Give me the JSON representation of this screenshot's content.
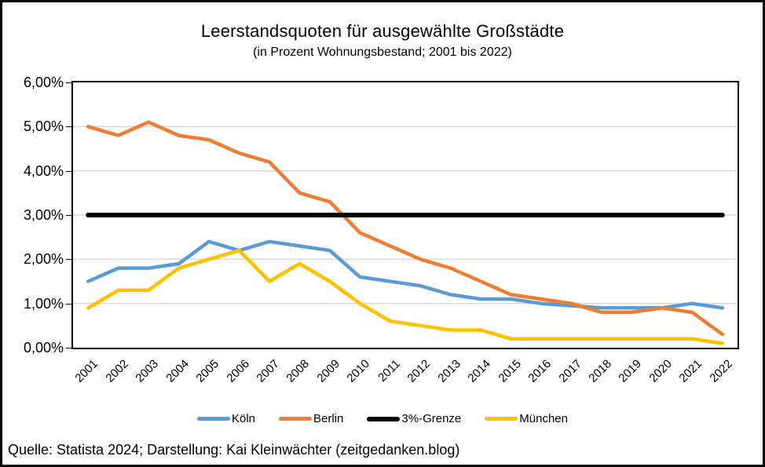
{
  "chart_data": {
    "type": "line",
    "title": "Leerstandsquoten für ausgewählte Großstädte",
    "subtitle": "(in Prozent Wohnungsbestand; 2001 bis 2022)",
    "categories": [
      "2001",
      "2002",
      "2003",
      "2004",
      "2005",
      "2006",
      "2007",
      "2008",
      "2009",
      "2010",
      "2011",
      "2012",
      "2013",
      "2014",
      "2015",
      "2016",
      "2017",
      "2018",
      "2019",
      "2020",
      "2021",
      "2022"
    ],
    "series": [
      {
        "name": "Köln",
        "color": "#5B9BD5",
        "stroke_width": 4.5,
        "values": [
          1.5,
          1.8,
          1.8,
          1.9,
          2.4,
          2.2,
          2.4,
          2.3,
          2.2,
          1.6,
          1.5,
          1.4,
          1.2,
          1.1,
          1.1,
          1.0,
          0.95,
          0.9,
          0.9,
          0.9,
          1.0,
          0.9
        ]
      },
      {
        "name": "Berlin",
        "color": "#ED7D31",
        "stroke_width": 4.5,
        "values": [
          5.0,
          4.8,
          5.1,
          4.8,
          4.7,
          4.4,
          4.2,
          3.5,
          3.3,
          2.6,
          2.3,
          2.0,
          1.8,
          1.5,
          1.2,
          1.1,
          1.0,
          0.8,
          0.8,
          0.9,
          0.8,
          0.3
        ]
      },
      {
        "name": "3%-Grenze",
        "color": "#000000",
        "stroke_width": 6,
        "values": [
          3.0,
          3.0,
          3.0,
          3.0,
          3.0,
          3.0,
          3.0,
          3.0,
          3.0,
          3.0,
          3.0,
          3.0,
          3.0,
          3.0,
          3.0,
          3.0,
          3.0,
          3.0,
          3.0,
          3.0,
          3.0,
          3.0
        ]
      },
      {
        "name": "München",
        "color": "#FFC000",
        "stroke_width": 4.5,
        "values": [
          0.9,
          1.3,
          1.3,
          1.8,
          2.0,
          2.2,
          1.5,
          1.9,
          1.5,
          1.0,
          0.6,
          0.5,
          0.4,
          0.4,
          0.2,
          0.2,
          0.2,
          0.2,
          0.2,
          0.2,
          0.2,
          0.1
        ]
      }
    ],
    "ylim": [
      0,
      6
    ],
    "ytick_step": 1,
    "ytick_labels": [
      "0,00%",
      "1,00%",
      "2,00%",
      "3,00%",
      "4,00%",
      "5,00%",
      "6,00%"
    ],
    "xlabel": "",
    "ylabel": "",
    "grid": true,
    "gridline_color": "#D9D9D9",
    "legend_position": "bottom"
  },
  "footer": {
    "source_line": "Quelle: Statista 2024; Darstellung: Kai Kleinwächter (zeitgedanken.blog)"
  }
}
